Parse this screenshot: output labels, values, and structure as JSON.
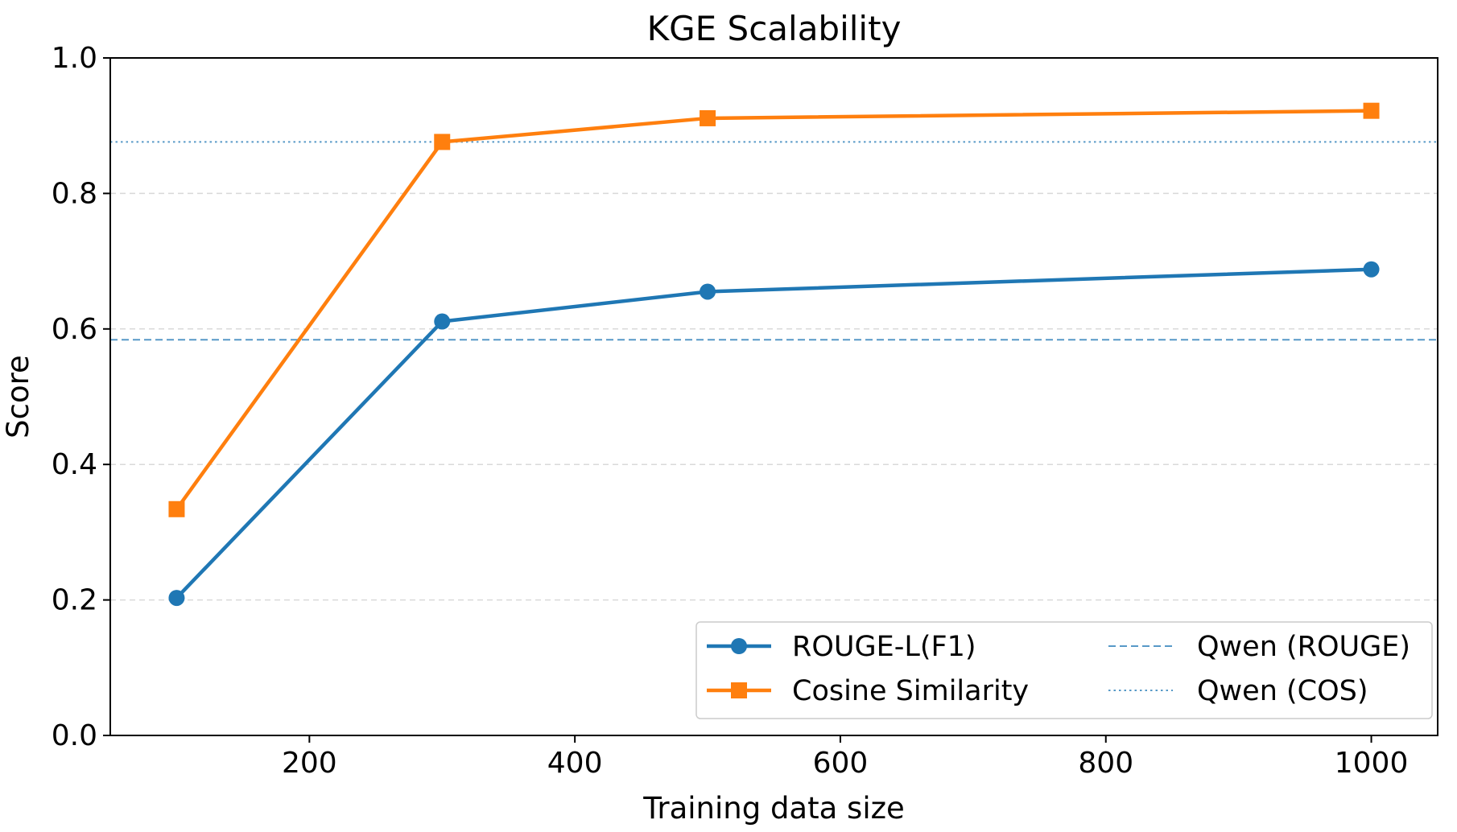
{
  "chart_data": {
    "type": "line",
    "title": "KGE Scalability",
    "xlabel": "Training data size",
    "ylabel": "Score",
    "xlim": [
      50,
      1050
    ],
    "ylim": [
      0.0,
      1.0
    ],
    "xticks": [
      200,
      400,
      600,
      800,
      1000
    ],
    "yticks": [
      0.0,
      0.2,
      0.4,
      0.6,
      0.8,
      1.0
    ],
    "ytick_labels": [
      "0.0",
      "0.2",
      "0.4",
      "0.6",
      "0.8",
      "1.0"
    ],
    "grid": "horizontal dashed",
    "legend_position": "lower-right",
    "x": [
      100,
      300,
      500,
      1000
    ],
    "series": [
      {
        "name": "ROUGE-L(F1)",
        "values": [
          0.203,
          0.611,
          0.655,
          0.688
        ],
        "color": "#1f77b4",
        "marker": "circle"
      },
      {
        "name": "Cosine Similarity",
        "values": [
          0.334,
          0.876,
          0.911,
          0.922
        ],
        "color": "#ff7f0e",
        "marker": "square"
      }
    ],
    "reference_lines": [
      {
        "name": "Qwen (ROUGE)",
        "value": 0.584,
        "color": "#1f77b4",
        "style": "dashed"
      },
      {
        "name": "Qwen (COS)",
        "value": 0.876,
        "color": "#1f77b4",
        "style": "dotted"
      }
    ]
  }
}
